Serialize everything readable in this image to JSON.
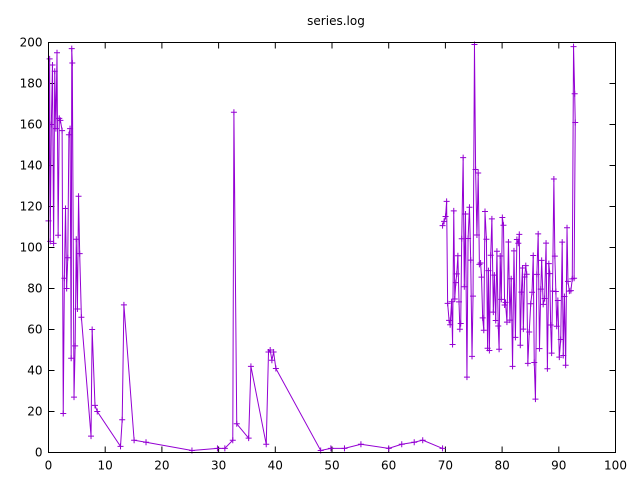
{
  "chart_data": {
    "type": "line",
    "title": "series.log",
    "xlabel": "",
    "ylabel": "",
    "xlim": [
      0,
      100
    ],
    "ylim": [
      0,
      200
    ],
    "x_ticks": [
      0,
      10,
      20,
      30,
      40,
      50,
      60,
      70,
      80,
      90,
      100
    ],
    "y_ticks": [
      0,
      20,
      40,
      60,
      80,
      100,
      120,
      140,
      160,
      180,
      200
    ],
    "grid": false,
    "legend": "none",
    "line_color": "#9400d3",
    "series": [
      {
        "name": "series.log",
        "points": [
          [
            0.0,
            113
          ],
          [
            0.2,
            192
          ],
          [
            0.3,
            103
          ],
          [
            0.5,
            160
          ],
          [
            0.7,
            189
          ],
          [
            0.9,
            102
          ],
          [
            1.1,
            186
          ],
          [
            1.3,
            158
          ],
          [
            1.5,
            195
          ],
          [
            1.7,
            106
          ],
          [
            1.9,
            163
          ],
          [
            2.1,
            162
          ],
          [
            2.4,
            157
          ],
          [
            2.6,
            19
          ],
          [
            2.8,
            85
          ],
          [
            3.0,
            119
          ],
          [
            3.2,
            80
          ],
          [
            3.4,
            95
          ],
          [
            3.6,
            155
          ],
          [
            3.8,
            158
          ],
          [
            4.0,
            46
          ],
          [
            4.1,
            197
          ],
          [
            4.2,
            190
          ],
          [
            4.5,
            27
          ],
          [
            4.7,
            52
          ],
          [
            4.9,
            104
          ],
          [
            5.1,
            70
          ],
          [
            5.3,
            125
          ],
          [
            5.5,
            97
          ],
          [
            5.8,
            66
          ],
          [
            7.5,
            8
          ],
          [
            7.7,
            60
          ],
          [
            8.2,
            23
          ],
          [
            8.6,
            20
          ],
          [
            12.7,
            3
          ],
          [
            13.0,
            16
          ],
          [
            13.3,
            72
          ],
          [
            15.1,
            6
          ],
          [
            17.2,
            5
          ],
          [
            25.3,
            1
          ],
          [
            29.8,
            2
          ],
          [
            31.1,
            2
          ],
          [
            32.5,
            6
          ],
          [
            32.7,
            166
          ],
          [
            33.2,
            14
          ],
          [
            35.3,
            7
          ],
          [
            35.7,
            42
          ],
          [
            38.4,
            4
          ],
          [
            38.8,
            49
          ],
          [
            39.1,
            50
          ],
          [
            39.4,
            45
          ],
          [
            39.7,
            49
          ],
          [
            40.1,
            41
          ],
          [
            48.0,
            1
          ],
          [
            49.8,
            2
          ],
          [
            52.2,
            2
          ],
          [
            55.1,
            4
          ],
          [
            60.0,
            2
          ],
          [
            62.3,
            4
          ],
          [
            64.5,
            5
          ],
          [
            66.0,
            6
          ],
          [
            69.5,
            2
          ]
        ]
      }
    ]
  }
}
